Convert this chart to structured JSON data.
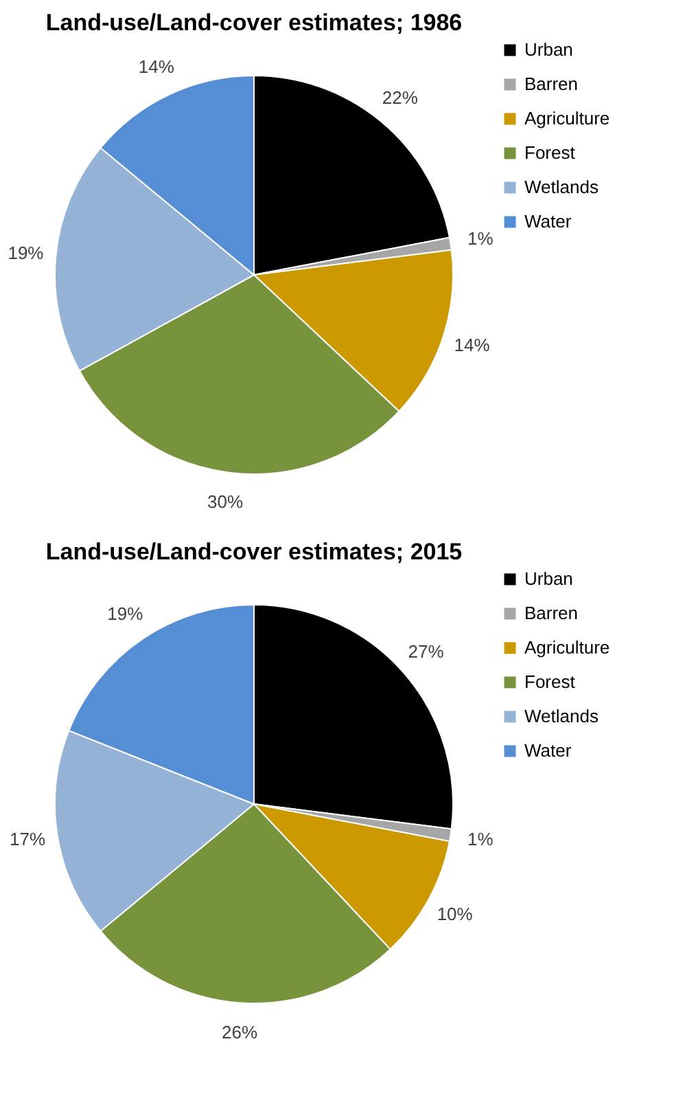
{
  "chart_data": [
    {
      "type": "pie",
      "title": "Land-use/Land-cover estimates; 1986",
      "categories": [
        "Urban",
        "Barren",
        "Agriculture",
        "Forest",
        "Wetlands",
        "Water"
      ],
      "values": [
        22,
        1,
        14,
        30,
        19,
        14
      ],
      "value_labels": [
        "22%",
        "1%",
        "14%",
        "30%",
        "19%",
        "14%"
      ],
      "colors": [
        "#000000",
        "#a6a6a6",
        "#cc9900",
        "#77933c",
        "#95b3d7",
        "#558ed5"
      ],
      "legend": "right"
    },
    {
      "type": "pie",
      "title": "Land-use/Land-cover estimates; 2015",
      "categories": [
        "Urban",
        "Barren",
        "Agriculture",
        "Forest",
        "Wetlands",
        "Water"
      ],
      "values": [
        27,
        1,
        10,
        26,
        17,
        19
      ],
      "value_labels": [
        "27%",
        "1%",
        "10%",
        "26%",
        "17%",
        "19%"
      ],
      "colors": [
        "#000000",
        "#a6a6a6",
        "#cc9900",
        "#77933c",
        "#95b3d7",
        "#558ed5"
      ],
      "legend": "right"
    }
  ]
}
